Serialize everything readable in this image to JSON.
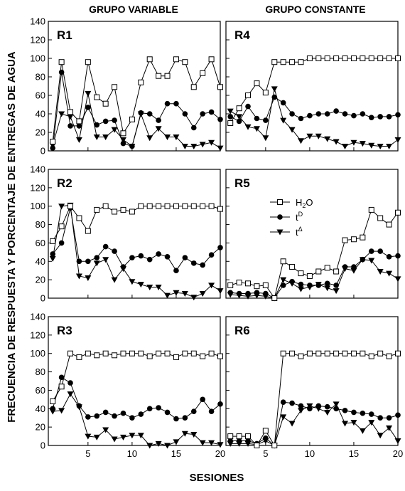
{
  "figure": {
    "col_titles": [
      "GRUPO VARIABLE",
      "GRUPO CONSTANTE"
    ],
    "ylabel": "FRECUENCIA DE RESPUESTA Y PORCENTAJE DE ENTREGAS DE AGUA",
    "xlabel": "SESIONES",
    "legend": {
      "placement": "in panel R5, left-center",
      "entries": [
        "H2O",
        "tD",
        "tΔ"
      ]
    }
  },
  "chart_data": [
    {
      "type": "line",
      "panel": "R1",
      "x": [
        1,
        2,
        3,
        4,
        5,
        6,
        7,
        8,
        9,
        10,
        11,
        12,
        13,
        14,
        15,
        16,
        17,
        18,
        19,
        20
      ],
      "xlim": [
        0.5,
        20
      ],
      "ylim": [
        0,
        140
      ],
      "xticks": [
        5,
        10,
        15,
        20
      ],
      "yticks": [
        0,
        20,
        40,
        60,
        80,
        100,
        120,
        140
      ],
      "series": [
        {
          "name": "H2O",
          "marker": "open-square",
          "values": [
            10,
            96,
            42,
            32,
            96,
            58,
            51,
            69,
            19,
            34,
            74,
            99,
            81,
            81,
            99,
            96,
            69,
            84,
            99,
            69
          ]
        },
        {
          "name": "tD",
          "marker": "filled-circle",
          "values": [
            3,
            85,
            27,
            27,
            47,
            28,
            32,
            33,
            8,
            5,
            41,
            40,
            33,
            51,
            51,
            40,
            25,
            40,
            42,
            34
          ]
        },
        {
          "name": "tΔ",
          "marker": "filled-triangle-down",
          "values": [
            6,
            40,
            37,
            12,
            62,
            15,
            15,
            23,
            12,
            5,
            40,
            14,
            24,
            15,
            15,
            5,
            5,
            7,
            9,
            3
          ]
        }
      ]
    },
    {
      "type": "line",
      "panel": "R4",
      "x": [
        1,
        2,
        3,
        4,
        5,
        6,
        7,
        8,
        9,
        10,
        11,
        12,
        13,
        14,
        15,
        16,
        17,
        18,
        19,
        20
      ],
      "xlim": [
        0.5,
        20
      ],
      "ylim": [
        0,
        140
      ],
      "xticks": [
        5,
        10,
        15,
        20
      ],
      "yticks": [
        0,
        20,
        40,
        60,
        80,
        100,
        120,
        140
      ],
      "series": [
        {
          "name": "H2O",
          "marker": "open-square",
          "values": [
            30,
            46,
            60,
            73,
            63,
            96,
            96,
            96,
            96,
            100,
            100,
            100,
            100,
            100,
            100,
            100,
            100,
            100,
            100,
            100
          ]
        },
        {
          "name": "tD",
          "marker": "filled-circle",
          "values": [
            37,
            32,
            48,
            35,
            33,
            58,
            52,
            40,
            35,
            38,
            40,
            40,
            43,
            40,
            38,
            40,
            36,
            37,
            37,
            39
          ]
        },
        {
          "name": "tΔ",
          "marker": "filled-triangle-down",
          "values": [
            43,
            37,
            26,
            24,
            14,
            67,
            33,
            23,
            11,
            16,
            16,
            13,
            10,
            5,
            9,
            8,
            6,
            5,
            5,
            12
          ]
        }
      ]
    },
    {
      "type": "line",
      "panel": "R2",
      "x": [
        1,
        2,
        3,
        4,
        5,
        6,
        7,
        8,
        9,
        10,
        11,
        12,
        13,
        14,
        15,
        16,
        17,
        18,
        19,
        20
      ],
      "xlim": [
        0.5,
        20
      ],
      "ylim": [
        0,
        140
      ],
      "xticks": [
        5,
        10,
        15,
        20
      ],
      "yticks": [
        0,
        20,
        40,
        60,
        80,
        100,
        120,
        140
      ],
      "series": [
        {
          "name": "H2O",
          "marker": "open-square",
          "values": [
            62,
            78,
            100,
            87,
            73,
            96,
            100,
            94,
            96,
            94,
            100,
            100,
            100,
            100,
            100,
            100,
            100,
            100,
            100,
            97
          ]
        },
        {
          "name": "tD",
          "marker": "filled-circle",
          "values": [
            48,
            60,
            98,
            40,
            40,
            44,
            56,
            51,
            34,
            44,
            46,
            42,
            48,
            45,
            30,
            44,
            38,
            36,
            47,
            55
          ]
        },
        {
          "name": "tΔ",
          "marker": "filled-triangle-down",
          "values": [
            43,
            100,
            101,
            24,
            22,
            38,
            42,
            20,
            32,
            18,
            15,
            12,
            12,
            3,
            6,
            5,
            1,
            5,
            14,
            8
          ]
        }
      ]
    },
    {
      "type": "line",
      "panel": "R5",
      "x": [
        1,
        2,
        3,
        4,
        5,
        6,
        7,
        8,
        9,
        10,
        11,
        12,
        13,
        14,
        15,
        16,
        17,
        18,
        19,
        20
      ],
      "xlim": [
        0.5,
        20
      ],
      "ylim": [
        0,
        140
      ],
      "xticks": [
        5,
        10,
        15,
        20
      ],
      "yticks": [
        0,
        20,
        40,
        60,
        80,
        100,
        120,
        140
      ],
      "series": [
        {
          "name": "H2O",
          "marker": "open-square",
          "values": [
            14,
            17,
            16,
            13,
            14,
            0,
            40,
            34,
            27,
            24,
            29,
            33,
            29,
            63,
            64,
            66,
            96,
            87,
            80,
            93
          ]
        },
        {
          "name": "tD",
          "marker": "filled-circle",
          "values": [
            6,
            5,
            5,
            6,
            5,
            0,
            14,
            18,
            15,
            14,
            14,
            16,
            14,
            34,
            34,
            42,
            51,
            51,
            45,
            46
          ]
        },
        {
          "name": "tΔ",
          "marker": "filled-triangle-down",
          "values": [
            4,
            3,
            2,
            3,
            2,
            0,
            20,
            16,
            10,
            12,
            15,
            11,
            8,
            32,
            30,
            42,
            41,
            29,
            27,
            21
          ]
        }
      ]
    },
    {
      "type": "line",
      "panel": "R3",
      "x": [
        1,
        2,
        3,
        4,
        5,
        6,
        7,
        8,
        9,
        10,
        11,
        12,
        13,
        14,
        15,
        16,
        17,
        18,
        19,
        20
      ],
      "xlim": [
        0.5,
        20
      ],
      "ylim": [
        0,
        140
      ],
      "xticks": [
        5,
        10,
        15,
        20
      ],
      "yticks": [
        0,
        20,
        40,
        60,
        80,
        100,
        120,
        140
      ],
      "series": [
        {
          "name": "H2O",
          "marker": "open-square",
          "values": [
            48,
            64,
            100,
            96,
            100,
            98,
            100,
            98,
            100,
            100,
            100,
            97,
            100,
            100,
            96,
            100,
            100,
            97,
            100,
            97
          ]
        },
        {
          "name": "tD",
          "marker": "filled-circle",
          "values": [
            40,
            74,
            68,
            43,
            31,
            32,
            36,
            32,
            35,
            30,
            34,
            40,
            41,
            36,
            29,
            30,
            37,
            50,
            37,
            45
          ]
        },
        {
          "name": "tΔ",
          "marker": "filled-triangle-down",
          "values": [
            37,
            38,
            56,
            42,
            10,
            9,
            17,
            7,
            9,
            11,
            11,
            0,
            2,
            0,
            4,
            13,
            12,
            3,
            3,
            1
          ]
        }
      ]
    },
    {
      "type": "line",
      "panel": "R6",
      "x": [
        1,
        2,
        3,
        4,
        5,
        6,
        7,
        8,
        9,
        10,
        11,
        12,
        13,
        14,
        15,
        16,
        17,
        18,
        19,
        20
      ],
      "xlim": [
        0.5,
        20
      ],
      "ylim": [
        0,
        140
      ],
      "xticks": [
        5,
        10,
        15,
        20
      ],
      "yticks": [
        0,
        20,
        40,
        60,
        80,
        100,
        120,
        140
      ],
      "series": [
        {
          "name": "H2O",
          "marker": "open-square",
          "values": [
            10,
            10,
            10,
            0,
            16,
            0,
            100,
            100,
            97,
            100,
            100,
            100,
            100,
            100,
            100,
            100,
            97,
            100,
            97,
            100
          ]
        },
        {
          "name": "tD",
          "marker": "filled-circle",
          "values": [
            5,
            5,
            5,
            2,
            8,
            0,
            47,
            46,
            43,
            40,
            43,
            42,
            40,
            38,
            36,
            35,
            34,
            30,
            30,
            33
          ]
        },
        {
          "name": "tΔ",
          "marker": "filled-triangle-down",
          "values": [
            2,
            2,
            2,
            1,
            5,
            0,
            31,
            24,
            38,
            43,
            40,
            36,
            45,
            24,
            25,
            16,
            25,
            11,
            19,
            5
          ]
        }
      ]
    }
  ]
}
